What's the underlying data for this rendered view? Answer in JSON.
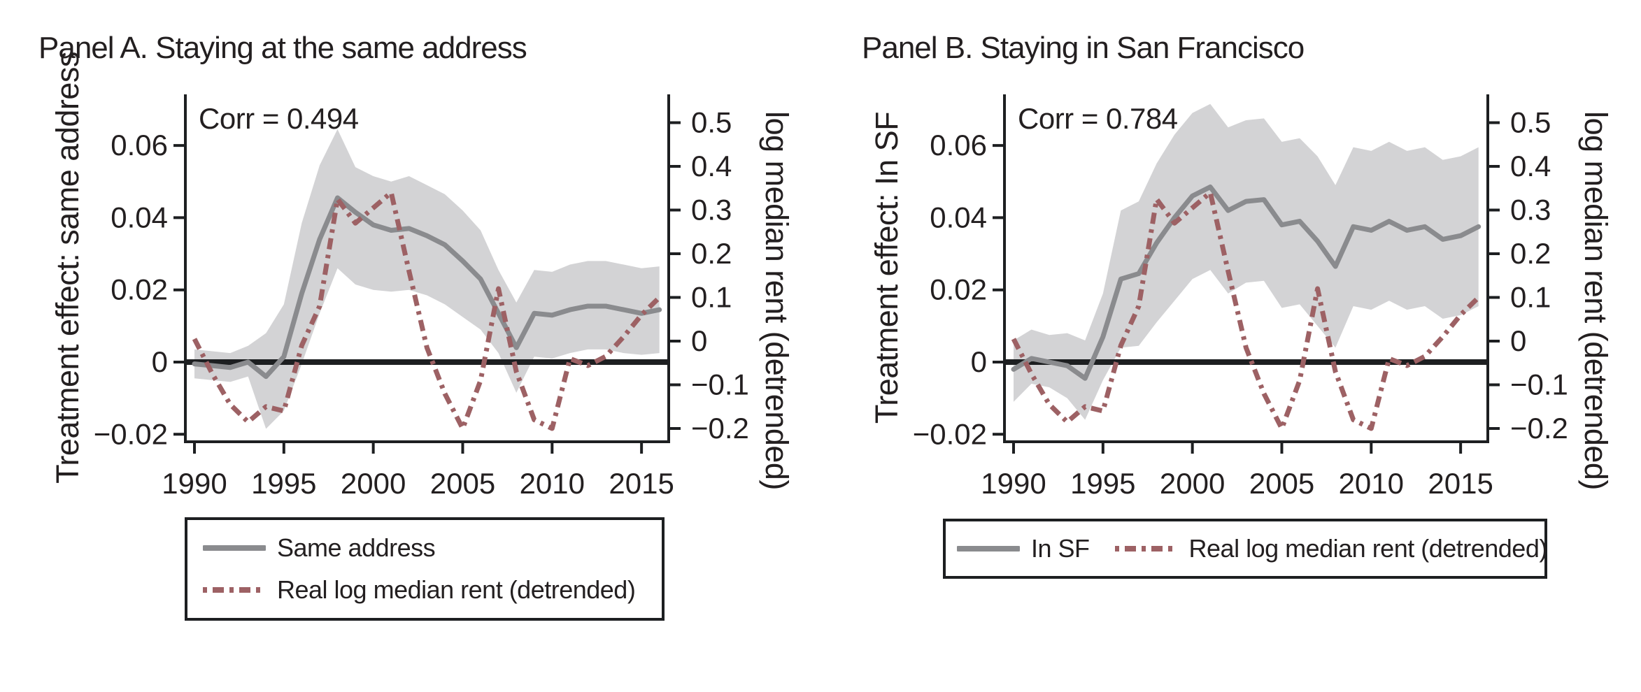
{
  "figure": {
    "background": "#ffffff",
    "colors": {
      "treatment_line": "#8a8b8e",
      "band": "#d3d3d5",
      "rent_line": "#9d6164",
      "zero_line": "#1d1f21",
      "axis": "#1d1f21",
      "text": "#231f20"
    }
  },
  "chart_data": [
    {
      "type": "line",
      "panel": "Panel A",
      "title": "Panel A. Staying at the same address",
      "annotation": "Corr = 0.494",
      "ylabel_left": "Treatment effect: same address",
      "ylabel_right": "log median rent (detrended)",
      "x_years": [
        1990,
        1991,
        1992,
        1993,
        1994,
        1995,
        1996,
        1997,
        1998,
        1999,
        2000,
        2001,
        2002,
        2003,
        2004,
        2005,
        2006,
        2007,
        2008,
        2009,
        2010,
        2011,
        2012,
        2013,
        2014,
        2015,
        2016
      ],
      "x_ticks": [
        1990,
        1995,
        2000,
        2005,
        2010,
        2015
      ],
      "x_tick_labels": [
        "1990",
        "1995",
        "2000",
        "2005",
        "2010",
        "2015"
      ],
      "left_tick_values": [
        0.06,
        0.04,
        0.02,
        0,
        -0.02
      ],
      "left_tick_labels": [
        "0.06",
        "0.04",
        "0.02",
        "0",
        "−0.02"
      ],
      "right_tick_values": [
        0.5,
        0.4,
        0.3,
        0.2,
        0.1,
        0,
        -0.1,
        -0.2
      ],
      "right_tick_labels": [
        "0.5",
        "0.4",
        "0.3",
        "0.2",
        "0.1",
        "0",
        "−0.1",
        "−0.2"
      ],
      "zero_line_value": 0,
      "grid": false,
      "series": [
        {
          "name": "Same address",
          "axis": "left",
          "style": "solid",
          "values": [
            -0.0005,
            -0.001,
            -0.0015,
            0,
            -0.004,
            0.0015,
            0.019,
            0.034,
            0.0455,
            0.0415,
            0.038,
            0.0365,
            0.037,
            0.035,
            0.0325,
            0.028,
            0.023,
            0.0135,
            0.004,
            0.0135,
            0.013,
            0.0145,
            0.0155,
            0.0155,
            0.0145,
            0.0135,
            0.0145
          ],
          "band_lower": [
            -0.0045,
            -0.005,
            -0.0055,
            -0.004,
            -0.0185,
            -0.0135,
            -0.0005,
            0.0135,
            0.026,
            0.0215,
            0.02,
            0.0195,
            0.02,
            0.0185,
            0.016,
            0.0125,
            0.009,
            0.0025,
            -0.0085,
            0.0015,
            0.001,
            0.0025,
            0.0035,
            0.0035,
            0.0025,
            0.002,
            0.0025
          ],
          "band_upper": [
            0.0035,
            0.003,
            0.0025,
            0.0045,
            0.008,
            0.016,
            0.0385,
            0.0545,
            0.0645,
            0.054,
            0.0515,
            0.05,
            0.0515,
            0.049,
            0.0465,
            0.042,
            0.0365,
            0.0255,
            0.0165,
            0.0255,
            0.025,
            0.027,
            0.028,
            0.028,
            0.027,
            0.026,
            0.0265
          ]
        },
        {
          "name": "Real log median rent (detrended)",
          "axis": "right",
          "style": "dashdot",
          "values": [
            0.005,
            -0.075,
            -0.145,
            -0.185,
            -0.15,
            -0.16,
            -0.01,
            0.08,
            0.325,
            0.27,
            0.305,
            0.34,
            0.16,
            -0.015,
            -0.12,
            -0.2,
            -0.09,
            0.12,
            -0.07,
            -0.18,
            -0.2,
            -0.04,
            -0.056,
            -0.035,
            0.01,
            0.06,
            0.1
          ]
        }
      ],
      "legend": {
        "orientation": "vertical",
        "entries": [
          "Same address",
          "Real log median rent (detrended)"
        ]
      }
    },
    {
      "type": "line",
      "panel": "Panel B",
      "title": "Panel B. Staying in San Francisco",
      "annotation": "Corr = 0.784",
      "ylabel_left": "Treatment effect: In SF",
      "ylabel_right": "log median rent (detrended)",
      "x_years": [
        1990,
        1991,
        1992,
        1993,
        1994,
        1995,
        1996,
        1997,
        1998,
        1999,
        2000,
        2001,
        2002,
        2003,
        2004,
        2005,
        2006,
        2007,
        2008,
        2009,
        2010,
        2011,
        2012,
        2013,
        2014,
        2015,
        2016
      ],
      "x_ticks": [
        1990,
        1995,
        2000,
        2005,
        2010,
        2015
      ],
      "x_tick_labels": [
        "1990",
        "1995",
        "2000",
        "2005",
        "2010",
        "2015"
      ],
      "left_tick_values": [
        0.06,
        0.04,
        0.02,
        0,
        -0.02
      ],
      "left_tick_labels": [
        "0.06",
        "0.04",
        "0.02",
        "0",
        "−0.02"
      ],
      "right_tick_values": [
        0.5,
        0.4,
        0.3,
        0.2,
        0.1,
        0,
        -0.1,
        -0.2
      ],
      "right_tick_labels": [
        "0.5",
        "0.4",
        "0.3",
        "0.2",
        "0.1",
        "0",
        "−0.1",
        "−0.2"
      ],
      "zero_line_value": 0,
      "grid": false,
      "series": [
        {
          "name": "In SF",
          "axis": "left",
          "style": "solid",
          "values": [
            -0.002,
            0.001,
            0,
            -0.001,
            -0.0045,
            0.007,
            0.023,
            0.0245,
            0.033,
            0.04,
            0.046,
            0.0485,
            0.042,
            0.0445,
            0.045,
            0.038,
            0.039,
            0.0335,
            0.0265,
            0.0375,
            0.0365,
            0.039,
            0.0365,
            0.0375,
            0.034,
            0.035,
            0.0375
          ],
          "band_lower": [
            -0.011,
            -0.006,
            -0.007,
            -0.01,
            -0.016,
            -0.005,
            0.004,
            0.0045,
            0.011,
            0.017,
            0.023,
            0.0255,
            0.019,
            0.022,
            0.0225,
            0.015,
            0.016,
            0.01,
            0.004,
            0.0155,
            0.0145,
            0.017,
            0.0145,
            0.0155,
            0.012,
            0.013,
            0.0155
          ],
          "band_upper": [
            0.006,
            0.009,
            0.0075,
            0.008,
            0.006,
            0.019,
            0.042,
            0.0445,
            0.055,
            0.063,
            0.069,
            0.0715,
            0.065,
            0.067,
            0.0675,
            0.061,
            0.062,
            0.057,
            0.049,
            0.0595,
            0.0585,
            0.061,
            0.0585,
            0.0595,
            0.056,
            0.057,
            0.0595
          ]
        },
        {
          "name": "Real log median rent (detrended)",
          "axis": "right",
          "style": "dashdot",
          "values": [
            0.005,
            -0.075,
            -0.145,
            -0.185,
            -0.15,
            -0.16,
            -0.01,
            0.08,
            0.325,
            0.27,
            0.305,
            0.34,
            0.16,
            -0.015,
            -0.12,
            -0.2,
            -0.09,
            0.12,
            -0.07,
            -0.18,
            -0.2,
            -0.04,
            -0.056,
            -0.035,
            0.01,
            0.06,
            0.1
          ]
        }
      ],
      "legend": {
        "orientation": "horizontal",
        "entries": [
          "In SF",
          "Real log median rent (detrended)"
        ]
      }
    }
  ]
}
